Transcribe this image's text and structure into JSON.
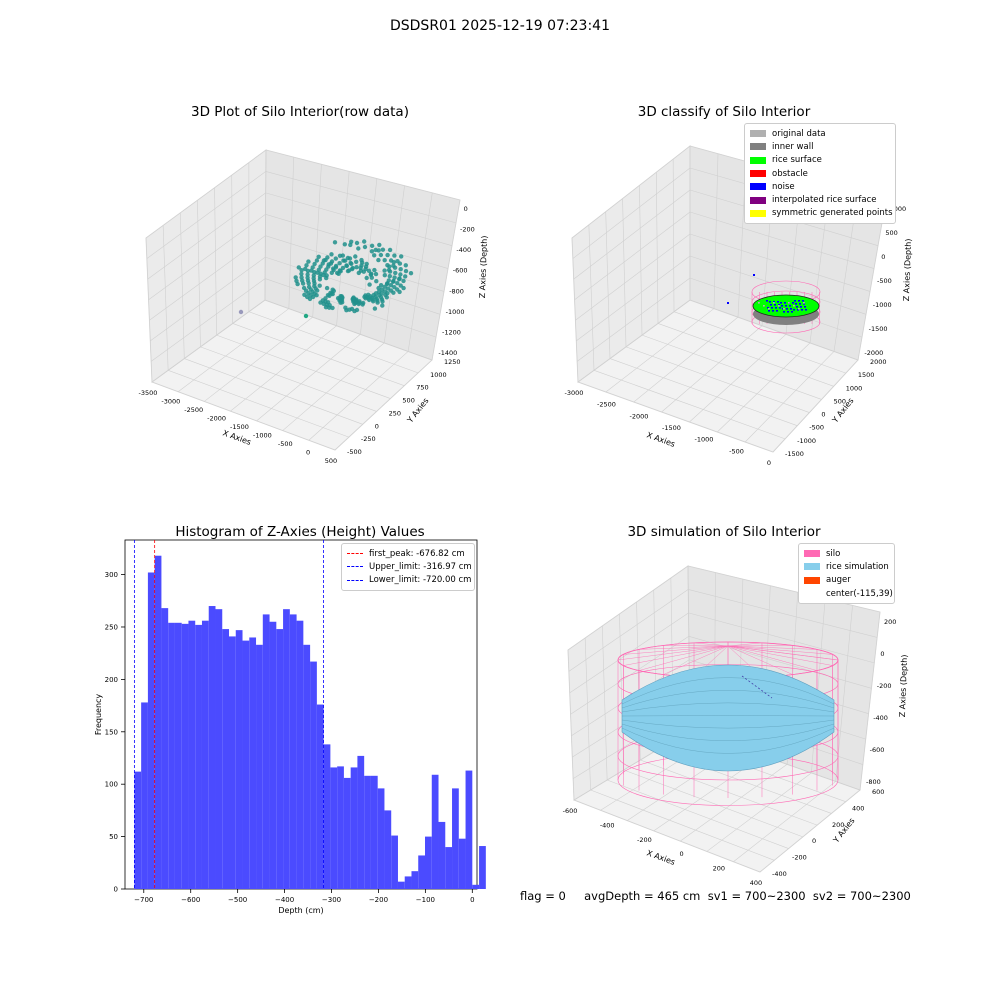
{
  "suptitle": "DSDSR01 2025-12-19 07:23:41",
  "panels": {
    "raw": {
      "title": "3D Plot of Silo Interior(row data)",
      "xlabel": "X Axies",
      "ylabel": "Y Axies",
      "zlabel": "Z Axies (Depth)",
      "xticks": [
        "-3500",
        "-3000",
        "-2500",
        "-2000",
        "-1500",
        "-1000",
        "-500",
        "0",
        "500"
      ],
      "yticks": [
        "-500",
        "-250",
        "0",
        "250",
        "500",
        "750",
        "1000",
        "1250"
      ],
      "zticks": [
        "0",
        "-200",
        "-400",
        "-600",
        "-800",
        "-1000",
        "-1200",
        "-1400"
      ],
      "colormap": [
        "#440154",
        "#21918c",
        "#5ec962",
        "#fde725"
      ]
    },
    "classify": {
      "title": "3D classify of Silo Interior",
      "xlabel": "X Axies",
      "ylabel": "Y Axies",
      "zlabel": "Z Axies (Depth)",
      "xticks": [
        "-3000",
        "-2500",
        "-2000",
        "-1500",
        "-1000",
        "-500",
        "0"
      ],
      "yticks": [
        "-1500",
        "-1000",
        "-500",
        "0",
        "500",
        "1000",
        "1500",
        "2000"
      ],
      "zticks": [
        "1000",
        "500",
        "0",
        "-500",
        "-1000",
        "-1500",
        "-2000"
      ],
      "legend": [
        {
          "label": "original data",
          "color": "#b0b0b0"
        },
        {
          "label": "inner wall",
          "color": "#808080"
        },
        {
          "label": "rice surface",
          "color": "#00ff00"
        },
        {
          "label": "obstacle",
          "color": "#ff0000"
        },
        {
          "label": "noise",
          "color": "#0000ff"
        },
        {
          "label": "interpolated rice surface",
          "color": "#800080"
        },
        {
          "label": "symmetric generated points",
          "color": "#ffff00"
        }
      ],
      "silo_color": "#ff69b4"
    },
    "simulation": {
      "title": "3D simulation of Silo Interior",
      "xlabel": "X Axies",
      "ylabel": "Y Axies",
      "zlabel": "Z Axies (Depth)",
      "xticks": [
        "-600",
        "-400",
        "-200",
        "0",
        "200",
        "400"
      ],
      "yticks": [
        "-400",
        "-200",
        "0",
        "200",
        "400",
        "600"
      ],
      "zticks": [
        "200",
        "0",
        "-200",
        "-400",
        "-600",
        "-800"
      ],
      "legend": [
        {
          "label": "silo",
          "color": "#ff69b4"
        },
        {
          "label": "rice simulation",
          "color": "#87ceeb"
        },
        {
          "label": "auger",
          "color": "#ff4500"
        },
        {
          "label": "center(-115,39)",
          "color": ""
        }
      ]
    }
  },
  "footer": "flag = 0     avgDepth = 465 cm  sv1 = 700~2300  sv2 = 700~2300",
  "chart_data": [
    {
      "type": "bar",
      "title": "Histogram of Z-Axies (Height) Values",
      "xlabel": "Depth (cm)",
      "ylabel": "Frequency",
      "xlim": [
        -740,
        10
      ],
      "ylim": [
        0,
        333
      ],
      "xticks": [
        -700,
        -600,
        -500,
        -400,
        -300,
        -200,
        -100,
        0
      ],
      "yticks": [
        0,
        50,
        100,
        150,
        200,
        250,
        300
      ],
      "bin_start": -720,
      "bin_width": 14.4,
      "color": "#4b4bff",
      "values": [
        112,
        178,
        302,
        318,
        268,
        254,
        254,
        253,
        256,
        252,
        256,
        270,
        267,
        248,
        241,
        247,
        237,
        240,
        233,
        262,
        255,
        248,
        267,
        262,
        256,
        233,
        217,
        176,
        138,
        116,
        117,
        106,
        116,
        127,
        108,
        108,
        96,
        75,
        51,
        7,
        12,
        17,
        32,
        50,
        109,
        64,
        40,
        96,
        48,
        113,
        4,
        41
      ],
      "reference_lines": [
        {
          "label": "first_peak: -676.82 cm",
          "x": -676.82,
          "color": "#ff0000"
        },
        {
          "label": "Upper_limit: -316.97 cm",
          "x": -316.97,
          "color": "#0000ff"
        },
        {
          "label": "Lower_limit: -720.00 cm",
          "x": -720.0,
          "color": "#0000ff"
        }
      ]
    }
  ]
}
